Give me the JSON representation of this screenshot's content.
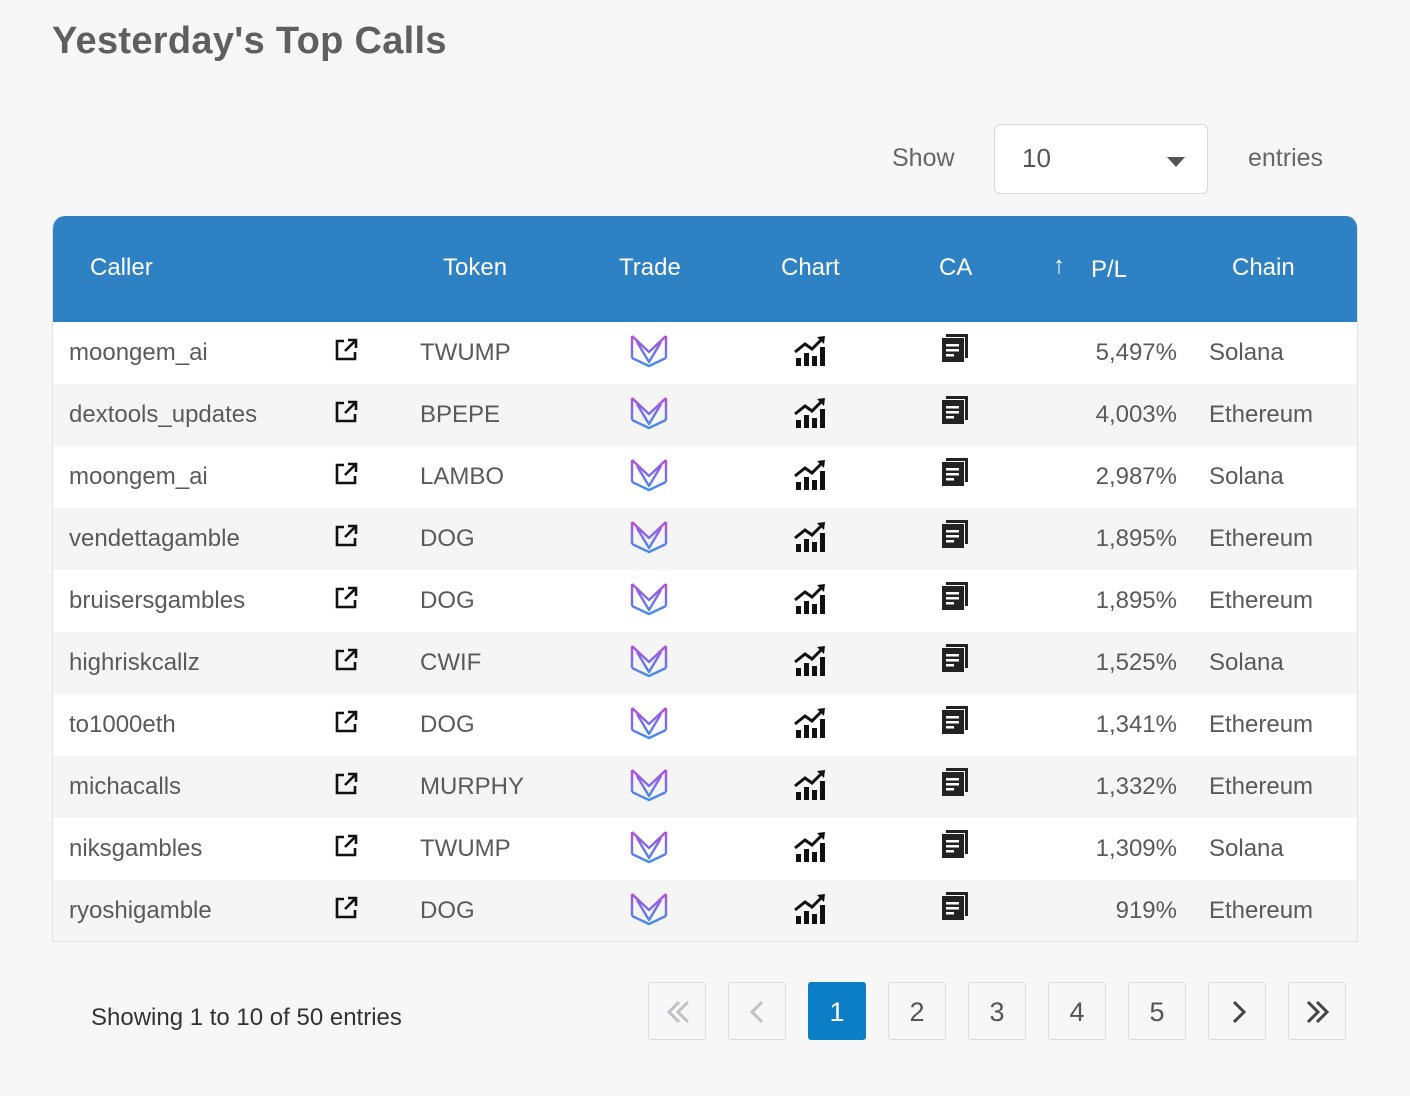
{
  "page": {
    "title": "Yesterday's Top Calls"
  },
  "length_control": {
    "show_label": "Show",
    "selected": "10",
    "entries_label": "entries"
  },
  "table": {
    "headers": {
      "caller": "Caller",
      "token": "Token",
      "trade": "Trade",
      "chart": "Chart",
      "ca": "CA",
      "pl": "P/L",
      "chain": "Chain"
    },
    "sort_indicator": "↑",
    "rows": [
      {
        "caller": "moongem_ai",
        "token": "TWUMP",
        "pl": "5,497%",
        "chain": "Solana"
      },
      {
        "caller": "dextools_updates",
        "token": "BPEPE",
        "pl": "4,003%",
        "chain": "Ethereum"
      },
      {
        "caller": "moongem_ai",
        "token": "LAMBO",
        "pl": "2,987%",
        "chain": "Solana"
      },
      {
        "caller": "vendettagamble",
        "token": "DOG",
        "pl": "1,895%",
        "chain": "Ethereum"
      },
      {
        "caller": "bruisersgambles",
        "token": "DOG",
        "pl": "1,895%",
        "chain": "Ethereum"
      },
      {
        "caller": "highriskcallz",
        "token": "CWIF",
        "pl": "1,525%",
        "chain": "Solana"
      },
      {
        "caller": "to1000eth",
        "token": "DOG",
        "pl": "1,341%",
        "chain": "Ethereum"
      },
      {
        "caller": "michacalls",
        "token": "MURPHY",
        "pl": "1,332%",
        "chain": "Ethereum"
      },
      {
        "caller": "niksgambles",
        "token": "TWUMP",
        "pl": "1,309%",
        "chain": "Solana"
      },
      {
        "caller": "ryoshigamble",
        "token": "DOG",
        "pl": "919%",
        "chain": "Ethereum"
      }
    ],
    "row_icons": {
      "external": "external-link-icon",
      "trade": "trade-logo-icon",
      "chart": "chart-icon",
      "ca": "copy-address-icon"
    }
  },
  "footer": {
    "info": "Showing 1 to 10 of 50 entries",
    "pages": [
      "1",
      "2",
      "3",
      "4",
      "5"
    ],
    "current_page": "1"
  },
  "colors": {
    "header_bg": "#2e81c3",
    "active_page": "#0b7ec6",
    "trade_logo_top": "#b44fe0",
    "trade_logo_bottom": "#3f8ef0"
  }
}
